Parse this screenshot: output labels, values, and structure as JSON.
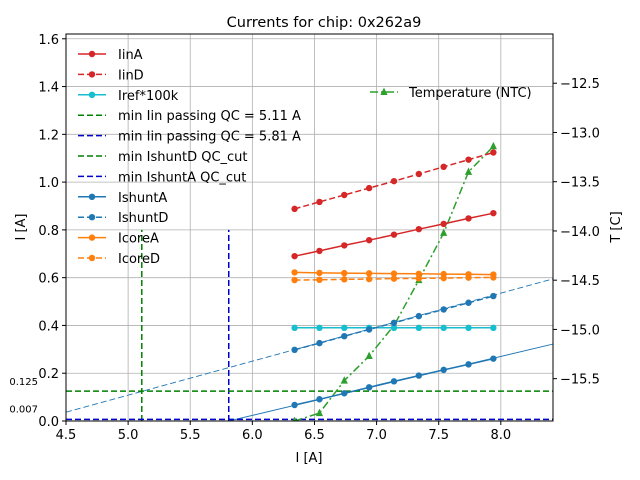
{
  "chart_data": {
    "type": "line",
    "title": "Currents for chip: 0x262a9",
    "xlabel": "I [A]",
    "ylabel": "I [A]",
    "y2label": "T [C]",
    "xlim": [
      4.5,
      8.42
    ],
    "ylim": [
      0,
      1.62
    ],
    "y2lim": [
      -15.93,
      -12.0
    ],
    "xticks": [
      "4.5",
      "5.0",
      "5.5",
      "6.0",
      "6.5",
      "7.0",
      "7.5",
      "8.0"
    ],
    "xtick_values": [
      4.5,
      5.0,
      5.5,
      6.0,
      6.5,
      7.0,
      7.5,
      8.0
    ],
    "yticks": [
      "0.0",
      "0.2",
      "0.4",
      "0.6",
      "0.8",
      "1.0",
      "1.2",
      "1.4",
      "1.6"
    ],
    "ytick_values": [
      0,
      0.2,
      0.4,
      0.6,
      0.8,
      1.0,
      1.2,
      1.4,
      1.6
    ],
    "y2ticks": [
      "−15.5",
      "−15.0",
      "−14.5",
      "−14.0",
      "−13.5",
      "−13.0",
      "−12.5"
    ],
    "y2tick_values": [
      -15.5,
      -15.0,
      -14.5,
      -14.0,
      -13.5,
      -13.0,
      -12.5
    ],
    "grid": true,
    "legend_placement": "upper left",
    "legend2_placement": "upper right",
    "x": [
      6.34,
      6.54,
      6.74,
      6.94,
      7.14,
      7.34,
      7.54,
      7.74,
      7.94
    ],
    "series": [
      {
        "name": "IinA",
        "color": "#d62728",
        "style": "solid",
        "marker": "circle",
        "values": [
          0.69,
          0.712,
          0.735,
          0.757,
          0.78,
          0.803,
          0.825,
          0.848,
          0.87
        ]
      },
      {
        "name": "IinD",
        "color": "#d62728",
        "style": "dashed",
        "marker": "circle",
        "values": [
          0.888,
          0.917,
          0.946,
          0.975,
          1.004,
          1.034,
          1.064,
          1.094,
          1.124
        ]
      },
      {
        "name": "Iref*100k",
        "color": "#17becf",
        "style": "solid",
        "marker": "circle",
        "values": [
          0.39,
          0.39,
          0.39,
          0.39,
          0.39,
          0.39,
          0.39,
          0.39,
          0.39
        ]
      },
      {
        "name": "IshuntA",
        "color": "#1f77b4",
        "style": "solid",
        "marker": "circle",
        "values": [
          0.067,
          0.091,
          0.116,
          0.141,
          0.166,
          0.19,
          0.214,
          0.237,
          0.261
        ]
      },
      {
        "name": "IshuntD",
        "color": "#1f77b4",
        "style": "dashed",
        "marker": "circle",
        "values": [
          0.298,
          0.326,
          0.355,
          0.383,
          0.411,
          0.439,
          0.467,
          0.495,
          0.523
        ]
      },
      {
        "name": "IcoreA",
        "color": "#ff7f0e",
        "style": "solid",
        "marker": "circle",
        "values": [
          0.622,
          0.62,
          0.619,
          0.618,
          0.617,
          0.616,
          0.615,
          0.614,
          0.613
        ]
      },
      {
        "name": "IcoreD",
        "color": "#ff7f0e",
        "style": "dashed",
        "marker": "circle",
        "values": [
          0.59,
          0.591,
          0.593,
          0.594,
          0.596,
          0.597,
          0.598,
          0.6,
          0.601
        ]
      }
    ],
    "temperature": {
      "name": "Temperature (NTC)",
      "color": "#2ca02c",
      "style": "dashdot",
      "marker": "triangle",
      "values": [
        -15.93,
        -15.85,
        -15.52,
        -15.27,
        -14.96,
        -14.5,
        -14.02,
        -13.4,
        -13.14
      ]
    },
    "fit_lines": [
      {
        "color": "#1f77b4",
        "style": "dashed",
        "x": [
          4.5,
          8.42
        ],
        "y": [
          0.037,
          0.595
        ]
      },
      {
        "color": "#1f77b4",
        "style": "solid",
        "x": [
          5.81,
          8.42
        ],
        "y": [
          0.0,
          0.322
        ]
      }
    ],
    "vlines": [
      {
        "name": "min Iin passing QC = 5.11 A",
        "x": 5.11,
        "ymax": 0.8,
        "color": "#008000",
        "style": "dashed"
      },
      {
        "name": "min Iin passing QC = 5.81 A",
        "x": 5.81,
        "ymax": 0.8,
        "color": "#0000cc",
        "style": "dashed"
      }
    ],
    "hlines": [
      {
        "name": "min IshuntD QC_cut",
        "y": 0.125,
        "label": "0.125",
        "color": "#008000",
        "style": "dashed"
      },
      {
        "name": "min IshuntA QC_cut",
        "y": 0.007,
        "label": "0.007",
        "color": "#0000cc",
        "style": "dashed"
      }
    ],
    "legend": [
      {
        "label": "IinA",
        "color": "#d62728",
        "style": "solid",
        "marker": "circle"
      },
      {
        "label": "IinD",
        "color": "#d62728",
        "style": "dashed",
        "marker": "circle"
      },
      {
        "label": "Iref*100k",
        "color": "#17becf",
        "style": "solid",
        "marker": "circle"
      },
      {
        "label": "min Iin passing QC = 5.11 A",
        "color": "#008000",
        "style": "dashed",
        "marker": "none"
      },
      {
        "label": "min Iin passing QC = 5.81 A",
        "color": "#0000cc",
        "style": "dashed",
        "marker": "none"
      },
      {
        "label": "min IshuntD QC_cut",
        "color": "#008000",
        "style": "dashed",
        "marker": "none"
      },
      {
        "label": "min IshuntA QC_cut",
        "color": "#0000cc",
        "style": "dashed",
        "marker": "none"
      },
      {
        "label": "IshuntA",
        "color": "#1f77b4",
        "style": "solid",
        "marker": "circle"
      },
      {
        "label": "IshuntD",
        "color": "#1f77b4",
        "style": "dashed",
        "marker": "circle"
      },
      {
        "label": "IcoreA",
        "color": "#ff7f0e",
        "style": "solid",
        "marker": "circle"
      },
      {
        "label": "IcoreD",
        "color": "#ff7f0e",
        "style": "dashed",
        "marker": "circle"
      }
    ],
    "legend2": [
      {
        "label": "Temperature (NTC)",
        "color": "#2ca02c",
        "style": "dashdot",
        "marker": "triangle"
      }
    ]
  }
}
